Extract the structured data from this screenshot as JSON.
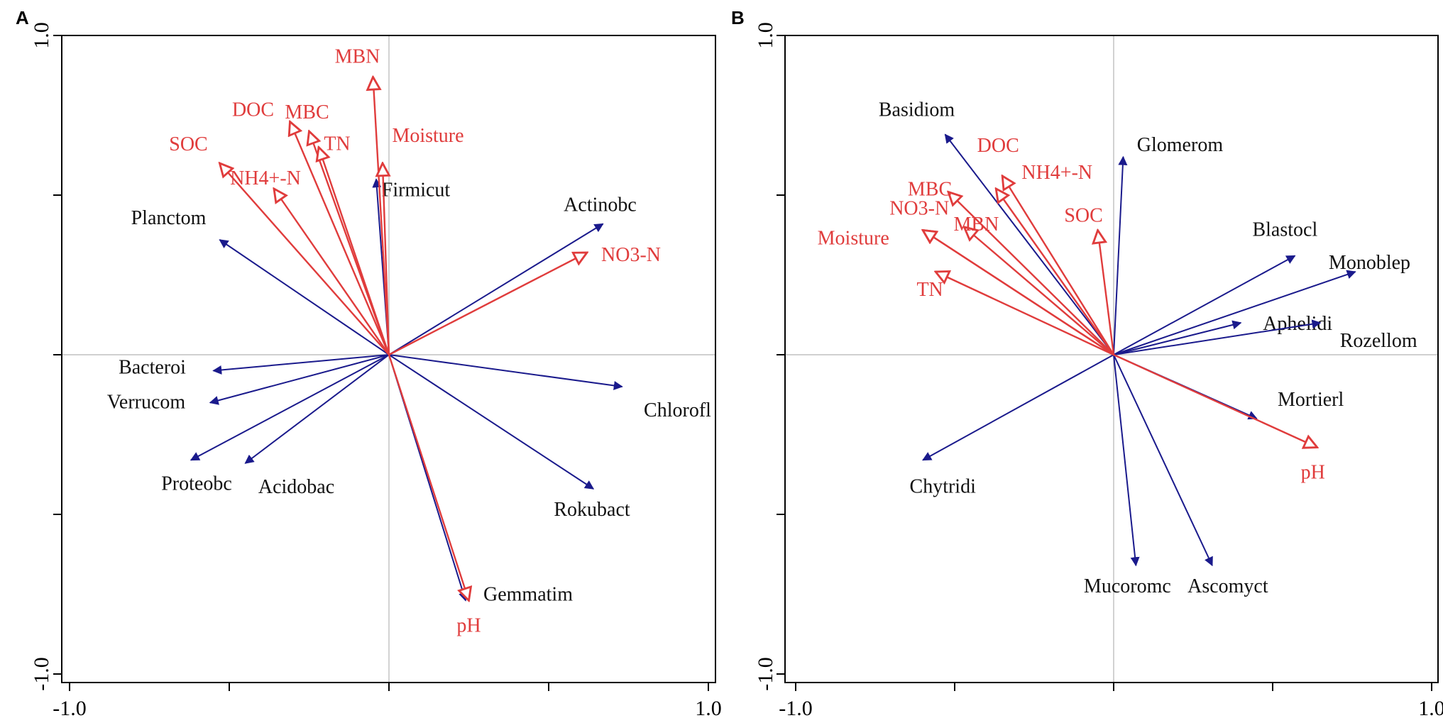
{
  "chart_data": [
    {
      "type": "biplot",
      "panel": "A",
      "xlabel": "",
      "ylabel": "",
      "xlim": [
        -1.0,
        1.0
      ],
      "ylim": [
        -1.0,
        1.0
      ],
      "x_tick_labels": [
        "-1.0",
        "1.0"
      ],
      "y_tick_labels": [
        "1.0",
        "-1.0"
      ],
      "colors": {
        "species": "#1a1a8c",
        "environment": "#e03c3c"
      },
      "series": [
        {
          "name": "species",
          "arrow": "filled",
          "vectors": [
            {
              "label": "Planctom",
              "x": -0.53,
              "y": 0.36
            },
            {
              "label": "Firmicut",
              "x": -0.04,
              "y": 0.55
            },
            {
              "label": "Actinobc",
              "x": 0.67,
              "y": 0.41
            },
            {
              "label": "Bacteroi",
              "x": -0.55,
              "y": -0.05
            },
            {
              "label": "Verrucom",
              "x": -0.56,
              "y": -0.15
            },
            {
              "label": "Proteobc",
              "x": -0.62,
              "y": -0.33
            },
            {
              "label": "Acidobac",
              "x": -0.45,
              "y": -0.34
            },
            {
              "label": "Chlorofl",
              "x": 0.73,
              "y": -0.1
            },
            {
              "label": "Rokubact",
              "x": 0.64,
              "y": -0.42
            },
            {
              "label": "Gemmatim",
              "x": 0.24,
              "y": -0.77
            }
          ]
        },
        {
          "name": "environment",
          "arrow": "open",
          "vectors": [
            {
              "label": "MBN",
              "x": -0.05,
              "y": 0.87
            },
            {
              "label": "DOC",
              "x": -0.31,
              "y": 0.73
            },
            {
              "label": "MBC",
              "x": -0.25,
              "y": 0.7
            },
            {
              "label": "TN",
              "x": -0.22,
              "y": 0.65
            },
            {
              "label": "Moisture",
              "x": -0.02,
              "y": 0.6
            },
            {
              "label": "SOC",
              "x": -0.53,
              "y": 0.6
            },
            {
              "label": "NH4+-N",
              "x": -0.36,
              "y": 0.52
            },
            {
              "label": "NO3-N",
              "x": 0.62,
              "y": 0.32
            },
            {
              "label": "pH",
              "x": 0.25,
              "y": -0.77
            }
          ]
        }
      ]
    },
    {
      "type": "biplot",
      "panel": "B",
      "xlabel": "",
      "ylabel": "",
      "xlim": [
        -1.0,
        1.0
      ],
      "ylim": [
        -1.0,
        1.0
      ],
      "x_tick_labels": [
        "-1.0",
        "1.0"
      ],
      "y_tick_labels": [
        "1.0",
        "-1.0"
      ],
      "colors": {
        "species": "#1a1a8c",
        "environment": "#e03c3c"
      },
      "series": [
        {
          "name": "species",
          "arrow": "filled",
          "vectors": [
            {
              "label": "Basidiom",
              "x": -0.53,
              "y": 0.69
            },
            {
              "label": "Glomerom",
              "x": 0.03,
              "y": 0.62
            },
            {
              "label": "Blastocl",
              "x": 0.57,
              "y": 0.31
            },
            {
              "label": "Monoblep",
              "x": 0.76,
              "y": 0.26
            },
            {
              "label": "Aphelidi",
              "x": 0.4,
              "y": 0.1
            },
            {
              "label": "Rozellom",
              "x": 0.65,
              "y": 0.1
            },
            {
              "label": "Mortierl",
              "x": 0.45,
              "y": -0.2
            },
            {
              "label": "Chytridi",
              "x": -0.6,
              "y": -0.33
            },
            {
              "label": "Mucoromc",
              "x": 0.07,
              "y": -0.66
            },
            {
              "label": "Ascomyct",
              "x": 0.31,
              "y": -0.66
            }
          ]
        },
        {
          "name": "environment",
          "arrow": "open",
          "vectors": [
            {
              "label": "DOC",
              "x": -0.35,
              "y": 0.56
            },
            {
              "label": "NH4+-N",
              "x": -0.37,
              "y": 0.52
            },
            {
              "label": "MBC",
              "x": -0.52,
              "y": 0.51
            },
            {
              "label": "MBN",
              "x": -0.47,
              "y": 0.4
            },
            {
              "label": "NO3-N",
              "x": -0.6,
              "y": 0.39
            },
            {
              "label": "Moisture",
              "x": -0.6,
              "y": 0.39
            },
            {
              "label": "SOC",
              "x": -0.05,
              "y": 0.39
            },
            {
              "label": "TN",
              "x": -0.56,
              "y": 0.26
            },
            {
              "label": "pH",
              "x": 0.64,
              "y": -0.29
            }
          ]
        }
      ]
    }
  ]
}
